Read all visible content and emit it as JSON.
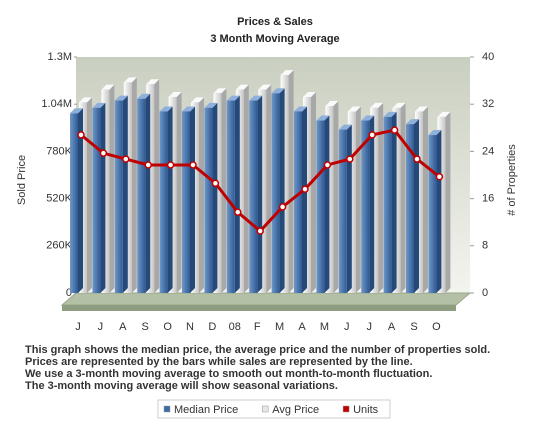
{
  "chart_data": {
    "type": "bar",
    "title": "Prices & Sales",
    "subtitle": "3 Month Moving Average",
    "y_label": "Sold Price",
    "y2_label": "# of Properties",
    "categories": [
      "J",
      "J",
      "A",
      "S",
      "O",
      "N",
      "D",
      "08",
      "F",
      "M",
      "A",
      "M",
      "J",
      "J",
      "A",
      "S",
      "O"
    ],
    "series": [
      {
        "name": "Median Price",
        "type": "bar",
        "color": "#3d6ca8",
        "values": [
          990000,
          1020000,
          1060000,
          1070000,
          1000000,
          1000000,
          1020000,
          1060000,
          1060000,
          1100000,
          1000000,
          950000,
          900000,
          950000,
          970000,
          930000,
          870000
        ]
      },
      {
        "name": "Avg Price",
        "type": "bar",
        "color": "#e6e6e6",
        "values": [
          1050000,
          1120000,
          1160000,
          1150000,
          1080000,
          1050000,
          1100000,
          1120000,
          1120000,
          1200000,
          1080000,
          1030000,
          1000000,
          1020000,
          1020000,
          1000000,
          970000
        ]
      },
      {
        "name": "Units",
        "type": "line",
        "axis": "y2",
        "color": "#c00000",
        "values": [
          26.8,
          23.7,
          22.7,
          21.7,
          21.7,
          21.7,
          18.6,
          13.7,
          10.5,
          14.6,
          17.6,
          21.7,
          22.7,
          26.8,
          27.6,
          22.7,
          19.7
        ]
      }
    ],
    "ylim": [
      0,
      1300000
    ],
    "yticks": [
      0,
      {
        "value": 260000,
        "label": "260K"
      },
      {
        "value": 520000,
        "label": "520K"
      },
      {
        "value": 780000,
        "label": "780K"
      },
      {
        "value": 1040000,
        "label": "1.04M"
      },
      {
        "value": 1300000,
        "label": "1.3M"
      }
    ],
    "y2lim": [
      0,
      40
    ],
    "y2ticks": [
      0,
      8,
      16,
      24,
      32,
      40
    ],
    "notes": [
      "This graph shows the median price, the average price and the number of properties sold.",
      "Prices are represented by the bars while sales are represented by the line.",
      "We use a 3-month moving average to smooth out month-to-month fluctuation.",
      "The 3-month moving average will show seasonal variations."
    ]
  }
}
